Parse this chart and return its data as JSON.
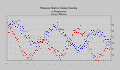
{
  "title": "Milwaukee Weather: Outdoor Humidity\nvs Temperature\nEvery 5 Minutes",
  "bg_color": "#c8c8c8",
  "plot_bg_color": "#d0d0d0",
  "grid_color": "#b0b0b0",
  "blue_color": "#0000dd",
  "red_color": "#dd0000",
  "ylim": [
    30,
    105
  ],
  "ytick_vals": [
    40,
    50,
    60,
    70,
    80,
    90,
    100
  ],
  "ytick_labels": [
    "4",
    "5",
    "6",
    "7",
    "8",
    "9",
    ""
  ],
  "n_points": 200,
  "seed": 7
}
